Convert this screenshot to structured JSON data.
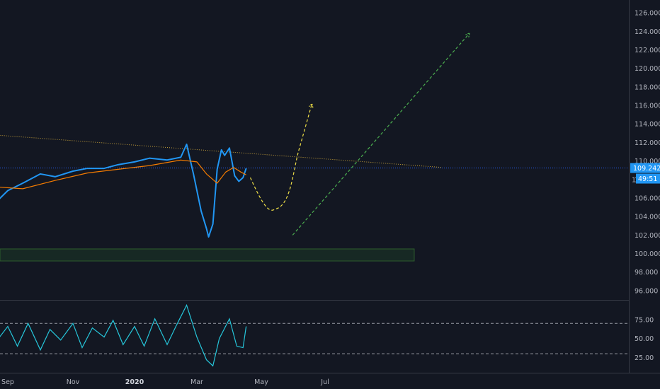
{
  "colors": {
    "background": "#131722",
    "price_line": "#2196f3",
    "moving_average": "#f57c00",
    "trendline_orange": "#c8a23a",
    "last_price_line": "#2962ff",
    "projection_yellow": "#f0e047",
    "projection_green": "#4caf50",
    "support_zone_border": "#2e5e2e",
    "rsi_line": "#26c6da",
    "grid_divider": "#363a45",
    "axis_text": "#b2b5be"
  },
  "price_axis": {
    "ticks": [
      "126.000",
      "124.000",
      "122.000",
      "120.000",
      "118.000",
      "116.000",
      "114.000",
      "112.000",
      "110.000",
      "108.000",
      "106.000",
      "104.000",
      "102.000",
      "100.000",
      "98.000",
      "96.000"
    ],
    "last_price_label": "109.242",
    "countdown_label": "49:51",
    "partial_tick": "10"
  },
  "rsi_axis": {
    "ticks": [
      "75.00",
      "50.00",
      "25.00"
    ]
  },
  "time_axis": {
    "ticks": [
      "Sep",
      "Nov",
      "2020",
      "Mar",
      "May",
      "Jul"
    ]
  },
  "chart_data": [
    {
      "type": "line",
      "pane": "price",
      "ylim": [
        95,
        127
      ],
      "yticks": [
        96,
        98,
        100,
        102,
        104,
        106,
        108,
        110,
        112,
        114,
        116,
        118,
        120,
        122,
        124,
        126
      ],
      "x_axis": [
        "Sep",
        "Nov",
        "2020",
        "Mar",
        "May",
        "Jul"
      ],
      "series": [
        {
          "style": "price",
          "x": [
            "Aug 20",
            "Sep 1",
            "Sep 15",
            "Oct 1",
            "Oct 15",
            "Nov 1",
            "Nov 15",
            "Dec 1",
            "Dec 15",
            "Jan 1",
            "Jan 15",
            "Feb 1",
            "Feb 15",
            "Feb 21",
            "Feb 28",
            "Mar 5",
            "Mar 10",
            "Mar 12",
            "Mar 16",
            "Mar 20",
            "Mar 24",
            "Mar 27",
            "Apr 1",
            "Apr 6",
            "Apr 10",
            "Apr 14",
            "Apr 17"
          ],
          "values": [
            105.5,
            106.8,
            107.6,
            108.6,
            108.3,
            108.9,
            109.2,
            109.2,
            109.6,
            109.9,
            110.3,
            110.1,
            110.4,
            111.8,
            108.6,
            104.6,
            102.7,
            101.8,
            103.2,
            109.1,
            111.2,
            110.6,
            111.4,
            108.4,
            107.8,
            108.2,
            109.2
          ]
        },
        {
          "style": "moving-average",
          "x": [
            "Aug 20",
            "Sep 15",
            "Oct 15",
            "Nov 15",
            "Dec 15",
            "Jan 15",
            "Feb 15",
            "Mar 1",
            "Mar 10",
            "Mar 20",
            "Mar 28",
            "Apr 5",
            "Apr 12",
            "Apr 17"
          ],
          "values": [
            107.2,
            107.0,
            107.9,
            108.7,
            109.1,
            109.5,
            110.1,
            109.9,
            108.6,
            107.6,
            108.8,
            109.3,
            108.8,
            108.5
          ]
        }
      ],
      "annotations": [
        {
          "type": "trendline",
          "from": [
            "Aug 20",
            112.8
          ],
          "to": [
            "Oct 20 (next)",
            109.3
          ]
        },
        {
          "type": "horizontal-line",
          "value": 109.242
        },
        {
          "type": "zone",
          "x_from": "Aug 20",
          "x_to": "Sep 24 (next)",
          "low": 99.2,
          "high": 100.5
        },
        {
          "type": "projection-arrow",
          "style": "dashed",
          "points": [
            [
              "Apr 21",
              108.2
            ],
            [
              "May 14",
              104.8
            ],
            [
              "Jun 6",
              111.0
            ],
            [
              "Jun 19",
              116.2
            ]
          ]
        },
        {
          "type": "projection-arrow",
          "style": "dashed",
          "points": [
            [
              "May 31",
              102.0
            ],
            [
              "Nov 15",
              123.8
            ]
          ]
        }
      ]
    },
    {
      "type": "line",
      "pane": "rsi",
      "ylim": [
        5,
        100
      ],
      "yticks": [
        25,
        50,
        75
      ],
      "reference_lines": [
        30,
        70
      ],
      "series": [
        {
          "style": "rsi",
          "x": [
            "Aug 20",
            "Sep 1",
            "Sep 10",
            "Sep 20",
            "Oct 1",
            "Oct 10",
            "Oct 20",
            "Nov 1",
            "Nov 10",
            "Nov 20",
            "Dec 1",
            "Dec 10",
            "Dec 20",
            "Jan 1",
            "Jan 10",
            "Jan 20",
            "Feb 1",
            "Feb 10",
            "Feb 21",
            "Mar 1",
            "Mar 10",
            "Mar 16",
            "Mar 22",
            "Apr 1",
            "Apr 8",
            "Apr 14",
            "Apr 17"
          ],
          "values": [
            45,
            66,
            40,
            70,
            35,
            62,
            48,
            70,
            38,
            64,
            52,
            74,
            42,
            66,
            40,
            76,
            42,
            66,
            94,
            52,
            22,
            14,
            50,
            76,
            40,
            38,
            66
          ]
        }
      ]
    }
  ]
}
